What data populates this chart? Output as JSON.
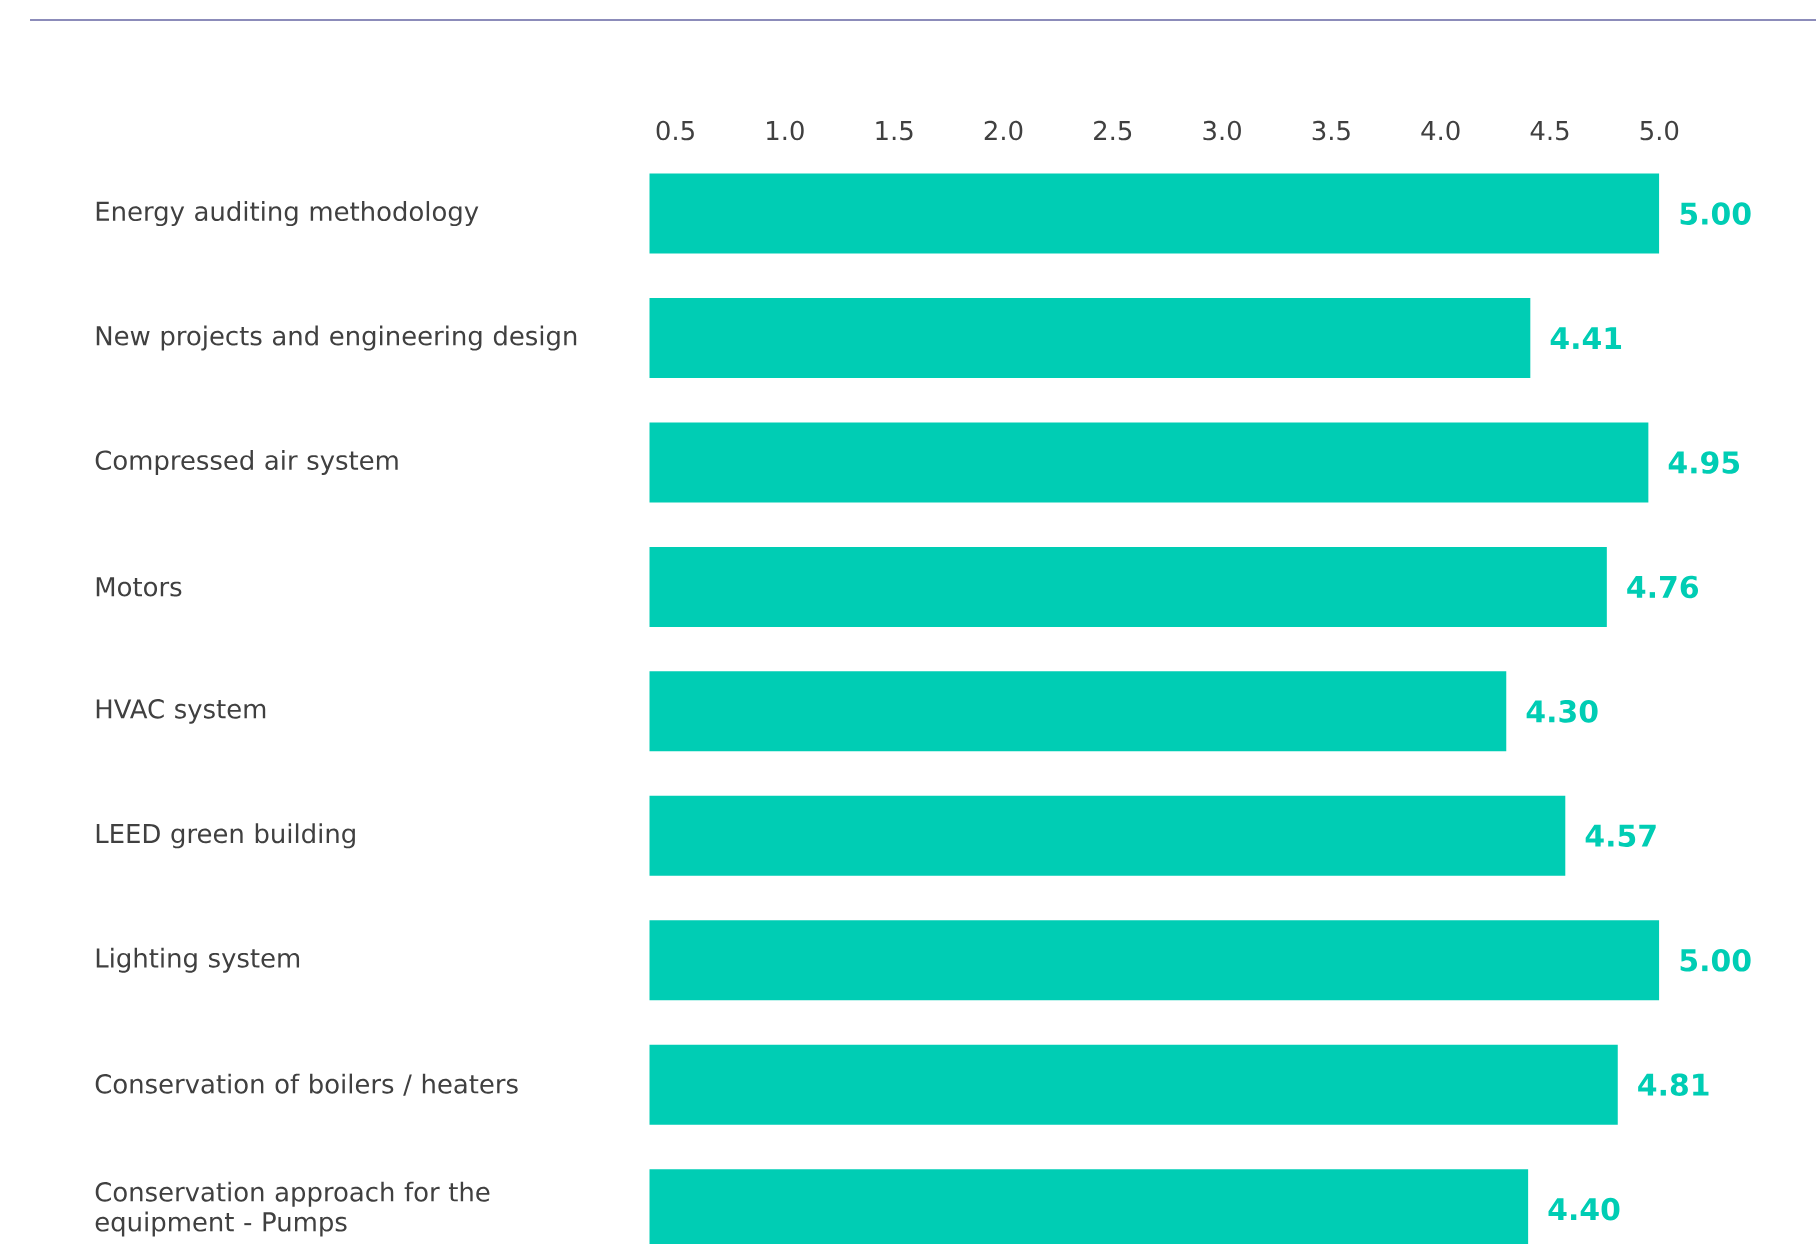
{
  "chart_data": {
    "type": "bar",
    "orientation": "horizontal",
    "color": "#00cdb4",
    "categories": [
      "Energy auditing methodology",
      "New projects and engineering design",
      "Compressed air system",
      "Motors",
      "HVAC system",
      "LEED green building",
      "Lighting system",
      "Conservation of boilers / heaters",
      "Conservation approach for the equipment - Pumps"
    ],
    "values": [
      5.0,
      4.41,
      4.95,
      4.76,
      4.3,
      4.57,
      5.0,
      4.81,
      4.4
    ],
    "value_labels": [
      "5.00",
      "4.41",
      "4.95",
      "4.76",
      "4.30",
      "4.57",
      "5.00",
      "4.81",
      "4.40"
    ],
    "xlim": [
      0.38,
      5.0
    ],
    "xticks": [
      {
        "value": 0.5,
        "label": "0.5"
      },
      {
        "value": 1.0,
        "label": "1.0"
      },
      {
        "value": 1.5,
        "label": "1.5"
      },
      {
        "value": 2.0,
        "label": "2.0"
      },
      {
        "value": 2.5,
        "label": "2.5"
      },
      {
        "value": 3.0,
        "label": "3.0"
      },
      {
        "value": 3.5,
        "label": "3.5"
      },
      {
        "value": 4.0,
        "label": "4.0"
      },
      {
        "value": 4.5,
        "label": "4.5"
      },
      {
        "value": 5.0,
        "label": "5.0"
      }
    ]
  }
}
